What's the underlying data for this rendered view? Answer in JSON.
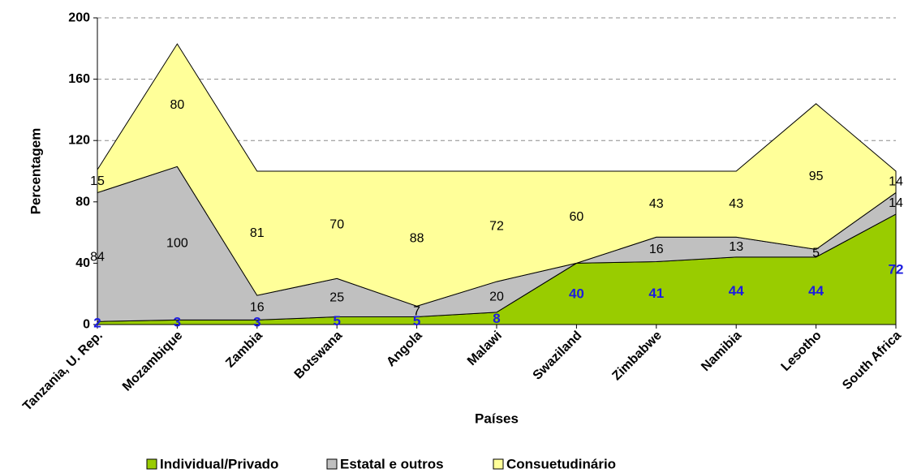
{
  "chart_data": {
    "type": "area",
    "stacked": true,
    "categories": [
      "Tanzania, U. Rep.",
      "Mozambique",
      "Zambia",
      "Botswana",
      "Angola",
      "Malawi",
      "Swaziland",
      "Zimbabwe",
      "Namibia",
      "Lesotho",
      "South Africa"
    ],
    "series": [
      {
        "name": "Individual/Privado",
        "values": [
          2,
          3,
          3,
          5,
          5,
          8,
          40,
          41,
          44,
          44,
          72
        ],
        "color": "#99cc00",
        "label_color": "#1c1ce0"
      },
      {
        "name": "Estatal e outros",
        "values": [
          84,
          100,
          16,
          25,
          7,
          20,
          0,
          16,
          13,
          5,
          14
        ],
        "color": "#c0c0c0",
        "label_color": "#000000"
      },
      {
        "name": "Consuetudinário",
        "values": [
          15,
          80,
          81,
          70,
          88,
          72,
          60,
          43,
          43,
          95,
          14
        ],
        "color": "#ffff99",
        "label_color": "#000000"
      }
    ],
    "xlabel": "Países",
    "ylabel": "Percentagem",
    "ylim": [
      0,
      200
    ],
    "yticks": [
      0,
      40,
      80,
      120,
      160,
      200
    ],
    "grid": true,
    "legend": "bottom"
  }
}
